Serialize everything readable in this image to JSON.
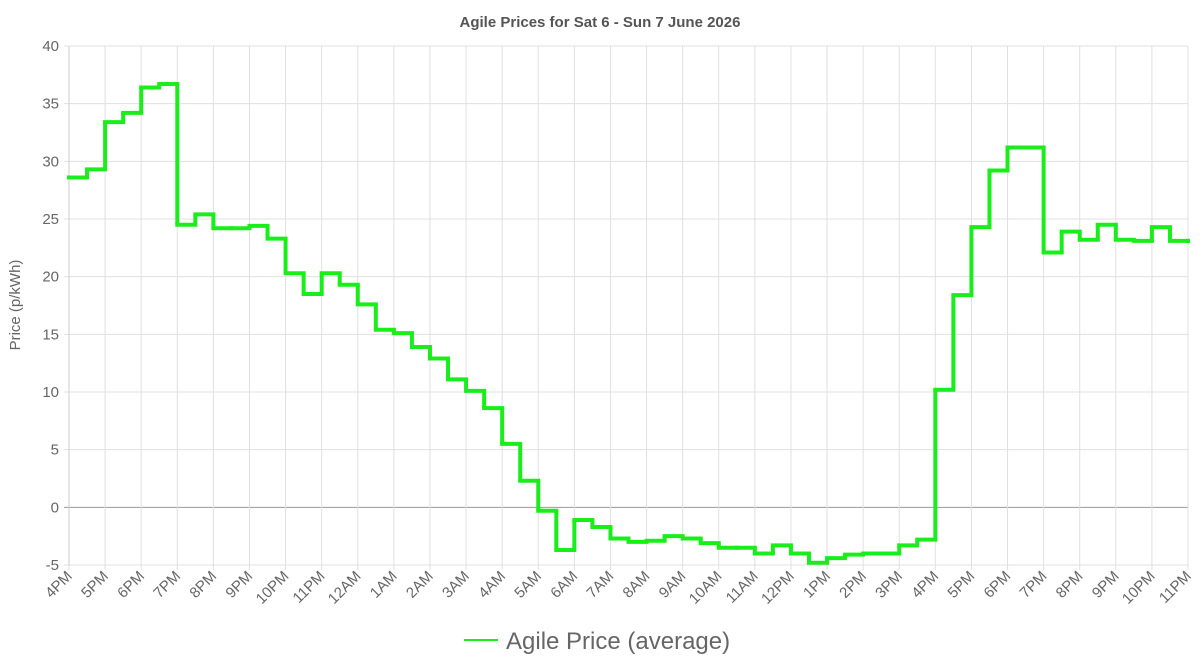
{
  "chart_data": {
    "type": "line",
    "stepped": true,
    "title": "Agile Prices for Sat 6 - Sun 7 June 2026",
    "y_label": "Price (p/kWh)",
    "categories": [
      "4PM",
      null,
      "5PM",
      null,
      "6PM",
      null,
      "7PM",
      null,
      "8PM",
      null,
      "9PM",
      null,
      "10PM",
      null,
      "11PM",
      null,
      "12AM",
      null,
      "1AM",
      null,
      "2AM",
      null,
      "3AM",
      null,
      "4AM",
      null,
      "5AM",
      null,
      "6AM",
      null,
      "7AM",
      null,
      "8AM",
      null,
      "9AM",
      null,
      "10AM",
      null,
      "11AM",
      null,
      "12PM",
      null,
      "1PM",
      null,
      "2PM",
      null,
      "3PM",
      null,
      "4PM",
      null,
      "5PM",
      null,
      "6PM",
      null,
      "7PM",
      null,
      "8PM",
      null,
      "9PM",
      null,
      "10PM",
      null,
      "11PM"
    ],
    "series": [
      {
        "name": "Agile Price (average)",
        "color": "#1aee1a",
        "values": [
          28.6,
          29.3,
          33.4,
          34.2,
          36.4,
          36.7,
          24.5,
          25.4,
          24.2,
          24.2,
          24.4,
          23.3,
          20.3,
          18.5,
          20.3,
          19.3,
          17.6,
          15.4,
          15.1,
          13.9,
          12.9,
          11.1,
          10.1,
          8.6,
          5.5,
          2.3,
          -0.3,
          -3.7,
          -1.1,
          -1.7,
          -2.7,
          -3.0,
          -2.9,
          -2.5,
          -2.7,
          -3.1,
          -3.5,
          -3.5,
          -4.0,
          -3.3,
          -4.0,
          -4.8,
          -4.4,
          -4.1,
          -4.0,
          -4.0,
          -3.3,
          -2.8,
          10.2,
          18.4,
          24.3,
          29.2,
          31.2,
          31.2,
          22.1,
          23.9,
          23.2,
          24.5,
          23.2,
          23.1,
          24.3,
          23.1,
          23.1
        ]
      }
    ],
    "ylim": [
      -5,
      40
    ],
    "yticks": [
      -5,
      0,
      5,
      10,
      15,
      20,
      25,
      30,
      35,
      40
    ],
    "grid": true,
    "legend": "bottom"
  }
}
